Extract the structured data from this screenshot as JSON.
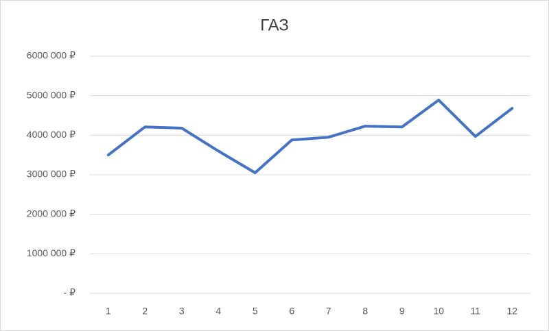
{
  "chart_data": {
    "type": "line",
    "title": "ГАЗ",
    "categories": [
      "1",
      "2",
      "3",
      "4",
      "5",
      "6",
      "7",
      "8",
      "9",
      "10",
      "11",
      "12"
    ],
    "series": [
      {
        "name": "ГАЗ",
        "color": "#4472c4",
        "values": [
          3500000,
          4210000,
          4180000,
          3600000,
          3050000,
          3880000,
          3950000,
          4230000,
          4210000,
          4890000,
          3970000,
          4680000
        ]
      }
    ],
    "ylim": [
      0,
      6000000
    ],
    "yticks": [
      {
        "value": 0,
        "label": "-  ₽"
      },
      {
        "value": 1000000,
        "label": "1000 000 ₽"
      },
      {
        "value": 2000000,
        "label": "2000 000 ₽"
      },
      {
        "value": 3000000,
        "label": "3000 000 ₽"
      },
      {
        "value": 4000000,
        "label": "4000 000 ₽"
      },
      {
        "value": 5000000,
        "label": "5000 000 ₽"
      },
      {
        "value": 6000000,
        "label": "6000 000 ₽"
      }
    ],
    "grid": true
  }
}
